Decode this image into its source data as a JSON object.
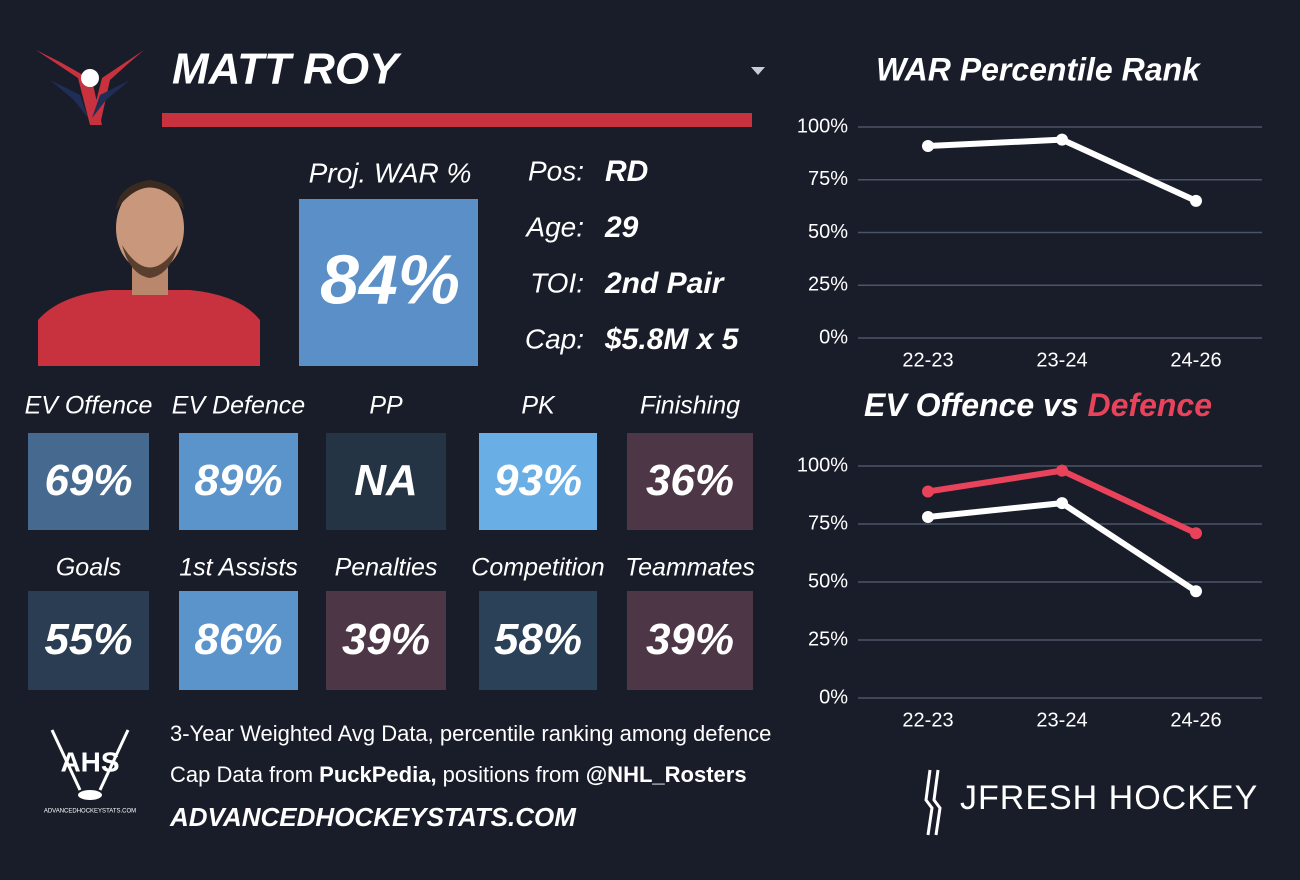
{
  "header": {
    "player": "MATT ROY"
  },
  "proj_war": {
    "label": "Proj. WAR %",
    "value": "84%",
    "color": "#5b8fc7"
  },
  "info": [
    {
      "label": "Pos:",
      "value": "RD"
    },
    {
      "label": "Age:",
      "value": "29"
    },
    {
      "label": "TOI:",
      "value": "2nd Pair"
    },
    {
      "label": "Cap:",
      "value": "$5.8M x 5"
    }
  ],
  "tiles": [
    {
      "label": "EV Offence",
      "value": "69%",
      "color": "#46698f"
    },
    {
      "label": "EV Defence",
      "value": "89%",
      "color": "#5b93cb"
    },
    {
      "label": "PP",
      "value": "NA",
      "color": "#243444"
    },
    {
      "label": "PK",
      "value": "93%",
      "color": "#6aaee6"
    },
    {
      "label": "Finishing",
      "value": "36%",
      "color": "#4d3646"
    },
    {
      "label": "Goals",
      "value": "55%",
      "color": "#2a3d52"
    },
    {
      "label": "1st Assists",
      "value": "86%",
      "color": "#5b93cb"
    },
    {
      "label": "Penalties",
      "value": "39%",
      "color": "#4d3646"
    },
    {
      "label": "Competition",
      "value": "58%",
      "color": "#2b4158"
    },
    {
      "label": "Teammates",
      "value": "39%",
      "color": "#4d3646"
    }
  ],
  "footer": {
    "line1": "3-Year Weighted Avg Data, percentile ranking among defence",
    "line2": [
      "Cap Data from ",
      "PuckPedia,",
      " positions from ",
      "@NHL_Rosters"
    ],
    "site": "ADVANCEDHOCKEYSTATS.COM",
    "ahs_logo": "AHS",
    "ahs_small": "ADVANCEDHOCKEYSTATS.COM",
    "brand": "JFRESH HOCKEY"
  },
  "chart_data": [
    {
      "type": "line",
      "title": "WAR Percentile Rank",
      "categories": [
        "22-23",
        "23-24",
        "24-26"
      ],
      "series": [
        {
          "color": "#ffffff",
          "values": [
            91,
            94,
            65
          ]
        }
      ],
      "ylim": [
        0,
        100
      ],
      "yticks": [
        {
          "value": 0,
          "label": "0%"
        },
        {
          "value": 25,
          "label": "25%"
        },
        {
          "value": 50,
          "label": "50%"
        },
        {
          "value": 75,
          "label": "75%"
        },
        {
          "value": 100,
          "label": "100%"
        }
      ],
      "grid": true
    },
    {
      "type": "line",
      "title": [
        "EV Offence vs",
        "Defence"
      ],
      "title_colors": [
        "#ffffff",
        "#e8435a"
      ],
      "categories": [
        "22-23",
        "23-24",
        "24-26"
      ],
      "series": [
        {
          "color": "#ffffff",
          "values": [
            78,
            84,
            46
          ]
        },
        {
          "color": "#e8435a",
          "values": [
            89,
            98,
            71
          ]
        }
      ],
      "ylim": [
        0,
        100
      ],
      "yticks": [
        {
          "value": 0,
          "label": "0%"
        },
        {
          "value": 25,
          "label": "25%"
        },
        {
          "value": 50,
          "label": "50%"
        },
        {
          "value": 75,
          "label": "75%"
        },
        {
          "value": 100,
          "label": "100%"
        }
      ],
      "grid": true
    }
  ]
}
